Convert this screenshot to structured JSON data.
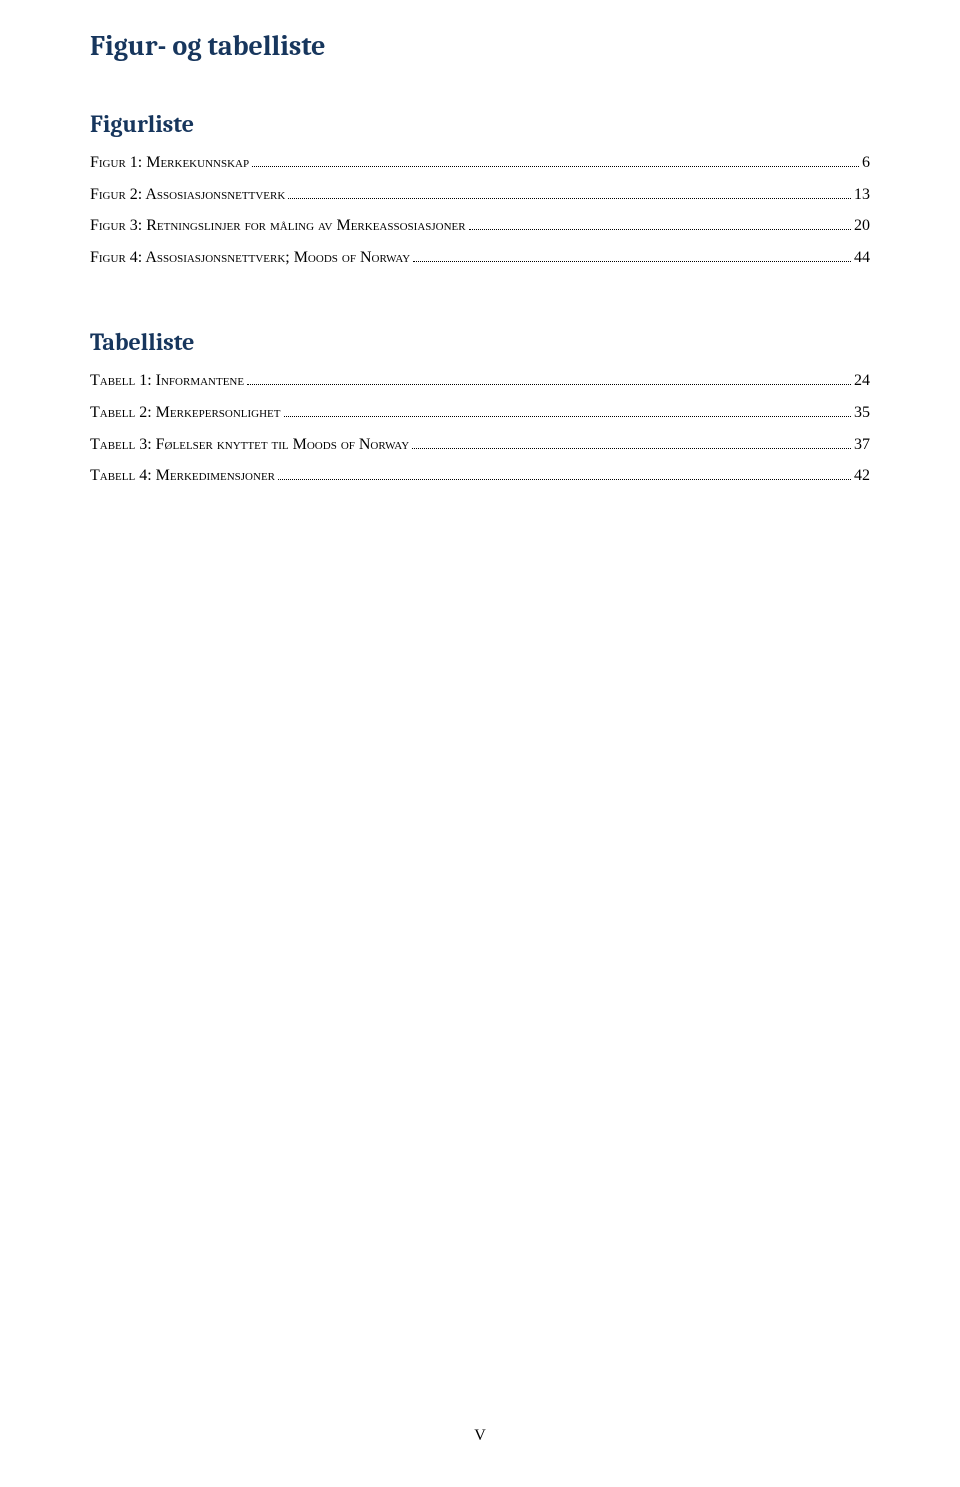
{
  "colors": {
    "heading": "#17365d",
    "text": "#000000",
    "background": "#ffffff",
    "leader": "#000000"
  },
  "typography": {
    "heading_font": "Cambria",
    "body_font": "Georgia",
    "main_heading_size_pt": 21,
    "sub_heading_size_pt": 18,
    "entry_size_pt": 12
  },
  "main_heading": "Figur- og tabelliste",
  "figurliste": {
    "heading": "Figurliste",
    "entries": [
      {
        "label": "Figur 1: Merkekunnskap",
        "page": " 6"
      },
      {
        "label": "Figur 2: Assosiasjonsnettverk",
        "page": "13"
      },
      {
        "label": "Figur 3: Retningslinjer for måling av Merkeassosiasjoner ",
        "page": "20"
      },
      {
        "label": "Figur 4: Assosiasjonsnettverk; Moods of Norway",
        "page": "44"
      }
    ]
  },
  "tabelliste": {
    "heading": "Tabelliste",
    "entries": [
      {
        "label": "Tabell 1: Informantene",
        "page": "24"
      },
      {
        "label": "Tabell 2: Merkepersonlighet",
        "page": "35"
      },
      {
        "label": "Tabell 3: Følelser knyttet til Moods of Norway",
        "page": "37"
      },
      {
        "label": "Tabell 4: Merkedimensjoner",
        "page": "42"
      }
    ]
  },
  "page_number": "V"
}
